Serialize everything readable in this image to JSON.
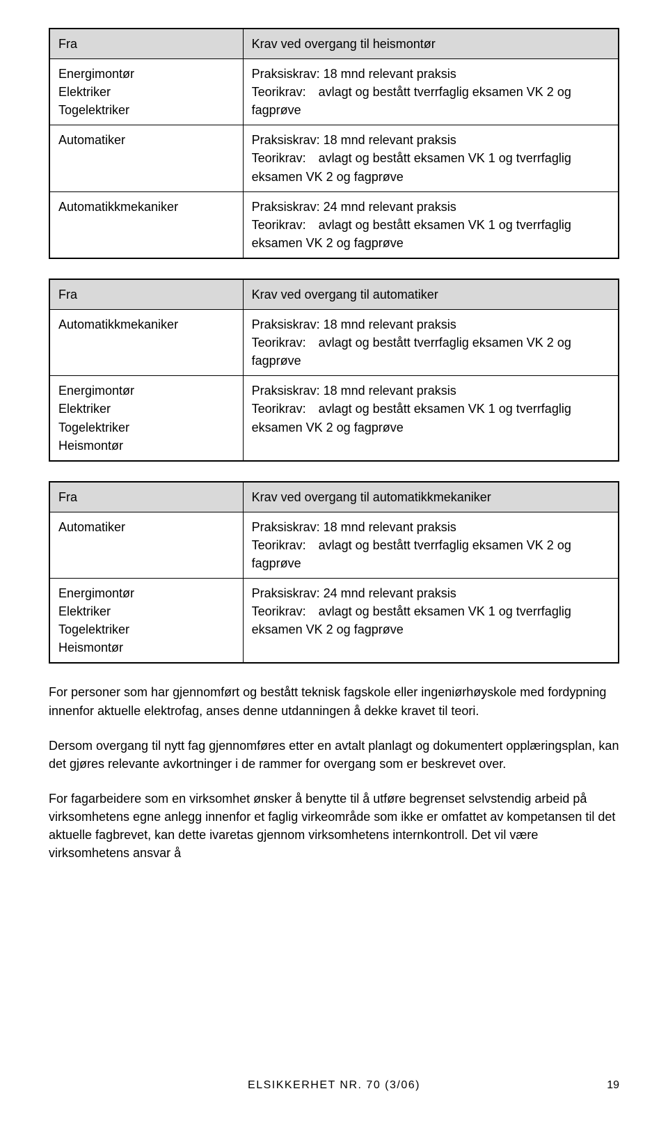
{
  "tables": [
    {
      "header": {
        "left": "Fra",
        "right": "Krav ved overgang til heismontør"
      },
      "rows": [
        {
          "left": "Energimontør\nElektriker\nTogelektriker",
          "right": "Praksiskrav: 18 mnd relevant praksis\nTeorikrav: avlagt og bestått tverrfaglig eksamen VK 2 og fagprøve"
        },
        {
          "left": "Automatiker",
          "right": "Praksiskrav: 18 mnd relevant praksis\nTeorikrav: avlagt og bestått eksamen VK 1 og tverrfaglig eksamen VK 2 og fagprøve"
        },
        {
          "left": "Automatikkmekaniker",
          "right": "Praksiskrav: 24 mnd relevant praksis\nTeorikrav: avlagt og bestått eksamen VK 1 og tverrfaglig eksamen VK 2 og fagprøve"
        }
      ]
    },
    {
      "header": {
        "left": "Fra",
        "right": "Krav ved overgang til automatiker"
      },
      "rows": [
        {
          "left": "Automatikkmekaniker",
          "right": "Praksiskrav: 18 mnd relevant praksis\nTeorikrav: avlagt og bestått tverrfaglig eksamen VK 2 og fagprøve"
        },
        {
          "left": "Energimontør\nElektriker\nTogelektriker\nHeismontør",
          "right": "Praksiskrav: 18 mnd relevant praksis\nTeorikrav: avlagt og bestått eksamen VK 1 og tverrfaglig eksamen VK 2 og fagprøve"
        }
      ]
    },
    {
      "header": {
        "left": "Fra",
        "right": "Krav ved overgang til automatikkmekaniker"
      },
      "rows": [
        {
          "left": "Automatiker",
          "right": "Praksiskrav: 18 mnd relevant praksis\nTeorikrav: avlagt og bestått tverrfaglig eksamen VK 2 og fagprøve"
        },
        {
          "left": "Energimontør\nElektriker\nTogelektriker\nHeismontør",
          "right": "Praksiskrav: 24 mnd relevant praksis\nTeorikrav: avlagt og bestått eksamen VK 1 og tverrfaglig eksamen VK 2 og fagprøve"
        }
      ]
    }
  ],
  "paragraphs": [
    "For personer som har gjennomført og bestått teknisk fagskole eller ingeniørhøyskole med fordypning innenfor aktuelle elektrofag, anses denne utdanningen å dekke kravet til teori.",
    "Dersom overgang til nytt fag gjennomføres etter en avtalt planlagt og dokumentert opplæringsplan, kan det gjøres relevante avkortninger i de rammer for overgang som er beskrevet over.",
    "For fagarbeidere som en virksomhet ønsker å benytte til å utføre begrenset selvstendig arbeid på virksomhetens egne anlegg innenfor et faglig virkeområde som ikke er omfattet av kompetansen til det aktuelle fagbrevet, kan dette ivaretas gjennom virksomhetens internkontroll. Det vil være virksomhetens ansvar å"
  ],
  "footer": {
    "label": "ELSIKKERHET NR. 70 (3/06)",
    "page": "19"
  }
}
